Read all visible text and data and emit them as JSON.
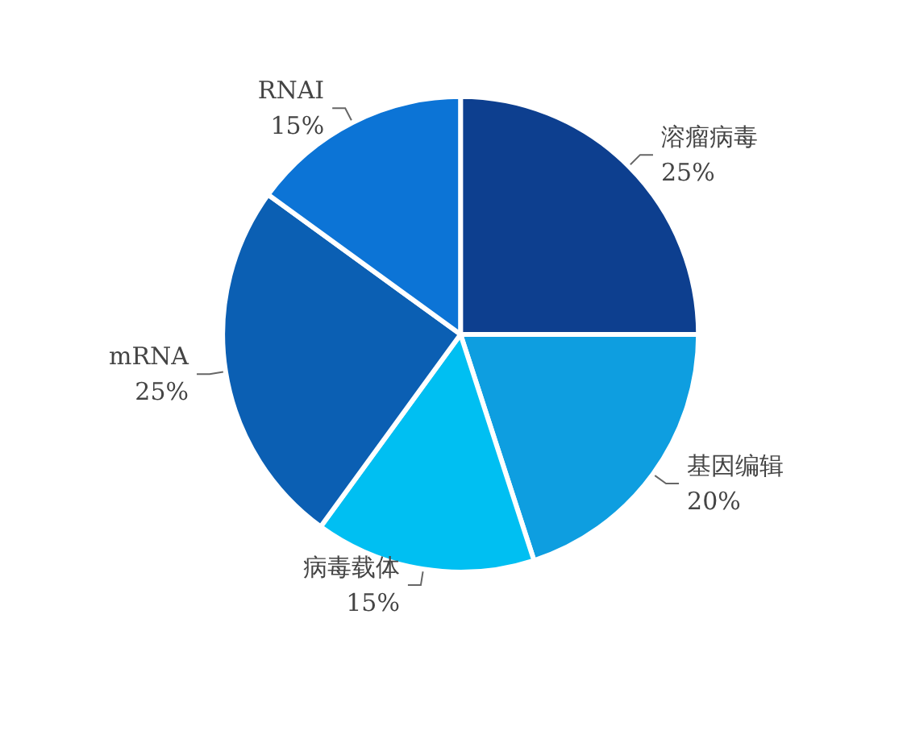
{
  "chart_data": {
    "type": "pie",
    "categories": [
      "溶瘤病毒",
      "基因编辑",
      "病毒载体",
      "mRNA",
      "RNAI"
    ],
    "values": [
      25,
      20,
      15,
      25,
      15
    ],
    "colors": [
      "#0d3f8f",
      "#0e9ee0",
      "#00bff2",
      "#0b5fb3",
      "#0c74d6"
    ],
    "value_labels": [
      "25%",
      "20%",
      "15%",
      "25%",
      "15%"
    ]
  }
}
